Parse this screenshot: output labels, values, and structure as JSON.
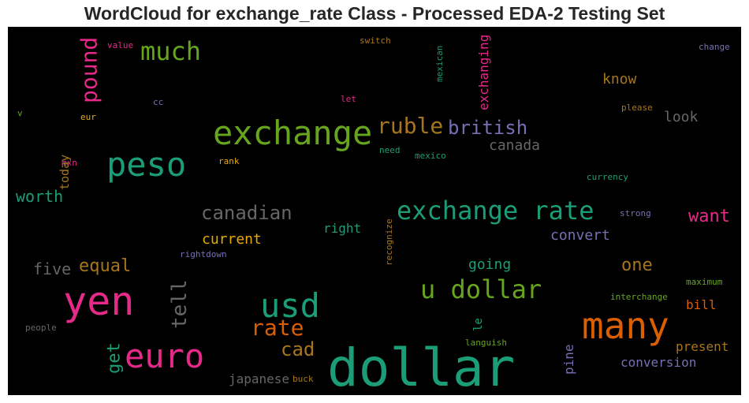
{
  "chart_data": {
    "type": "wordcloud",
    "title": "WordCloud for exchange_rate Class - Processed EDA-2 Testing Set",
    "background": "#000000",
    "colormap": "Dark2",
    "words": [
      {
        "text": "dollar",
        "color": "#1b9e77"
      },
      {
        "text": "exchange",
        "color": "#66a61e"
      },
      {
        "text": "peso",
        "color": "#1b9e77"
      },
      {
        "text": "yen",
        "color": "#e7298a"
      },
      {
        "text": "many",
        "color": "#d95f02"
      },
      {
        "text": "euro",
        "color": "#e7298a"
      },
      {
        "text": "usd",
        "color": "#1b9e77"
      },
      {
        "text": "exchange rate",
        "color": "#1b9e77"
      },
      {
        "text": "u dollar",
        "color": "#66a61e"
      },
      {
        "text": "much",
        "color": "#66a61e"
      },
      {
        "text": "ruble",
        "color": "#a6761d"
      },
      {
        "text": "british",
        "color": "#7570b3"
      },
      {
        "text": "pound",
        "color": "#e7298a"
      },
      {
        "text": "rate",
        "color": "#d95f02"
      },
      {
        "text": "canadian",
        "color": "#666666"
      },
      {
        "text": "tell",
        "color": "#666666"
      },
      {
        "text": "cad",
        "color": "#a6761d"
      },
      {
        "text": "want",
        "color": "#e7298a"
      },
      {
        "text": "get",
        "color": "#1b9e77"
      },
      {
        "text": "equal",
        "color": "#a6761d"
      },
      {
        "text": "five",
        "color": "#666666"
      },
      {
        "text": "worth",
        "color": "#1b9e77"
      },
      {
        "text": "one",
        "color": "#a6761d"
      },
      {
        "text": "exchanging",
        "color": "#e7298a"
      },
      {
        "text": "know",
        "color": "#a6761d"
      },
      {
        "text": "canada",
        "color": "#666666"
      },
      {
        "text": "convert",
        "color": "#7570b3"
      },
      {
        "text": "going",
        "color": "#1b9e77"
      },
      {
        "text": "current",
        "color": "#e6ab02"
      },
      {
        "text": "look",
        "color": "#666666"
      },
      {
        "text": "present",
        "color": "#a6761d"
      },
      {
        "text": "conversion",
        "color": "#7570b3"
      },
      {
        "text": "japanese",
        "color": "#666666"
      },
      {
        "text": "right",
        "color": "#1b9e77"
      },
      {
        "text": "pine",
        "color": "#7570b3"
      },
      {
        "text": "today",
        "color": "#a6761d"
      },
      {
        "text": "bill",
        "color": "#d95f02"
      },
      {
        "text": "le",
        "color": "#1b9e77"
      },
      {
        "text": "mexican",
        "color": "#1b9e77"
      },
      {
        "text": "recognize",
        "color": "#a6761d"
      },
      {
        "text": "switch",
        "color": "#a6761d"
      },
      {
        "text": "value",
        "color": "#e7298a"
      },
      {
        "text": "change",
        "color": "#7570b3"
      },
      {
        "text": "please",
        "color": "#a6761d"
      },
      {
        "text": "mexico",
        "color": "#1b9e77"
      },
      {
        "text": "need",
        "color": "#1b9e77"
      },
      {
        "text": "rank",
        "color": "#e6ab02"
      },
      {
        "text": "currency",
        "color": "#1b9e77"
      },
      {
        "text": "strong",
        "color": "#7570b3"
      },
      {
        "text": "maximum",
        "color": "#66a61e"
      },
      {
        "text": "interchange",
        "color": "#66a61e"
      },
      {
        "text": "languish",
        "color": "#66a61e"
      },
      {
        "text": "buck",
        "color": "#a6761d"
      },
      {
        "text": "rightdown",
        "color": "#7570b3"
      },
      {
        "text": "people",
        "color": "#666666"
      },
      {
        "text": "mxn",
        "color": "#e7298a"
      },
      {
        "text": "eur",
        "color": "#e6ab02"
      },
      {
        "text": "cc",
        "color": "#7570b3"
      },
      {
        "text": "let",
        "color": "#e7298a"
      },
      {
        "text": "v",
        "color": "#66a61e"
      }
    ]
  }
}
